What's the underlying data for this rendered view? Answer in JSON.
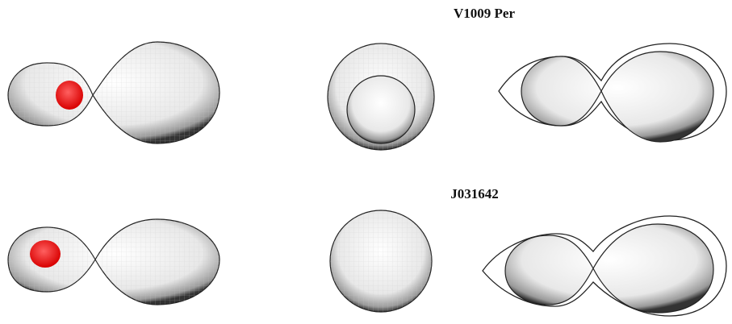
{
  "panels": [
    {
      "title": "V1009 Per"
    },
    {
      "title": "J031642"
    }
  ]
}
